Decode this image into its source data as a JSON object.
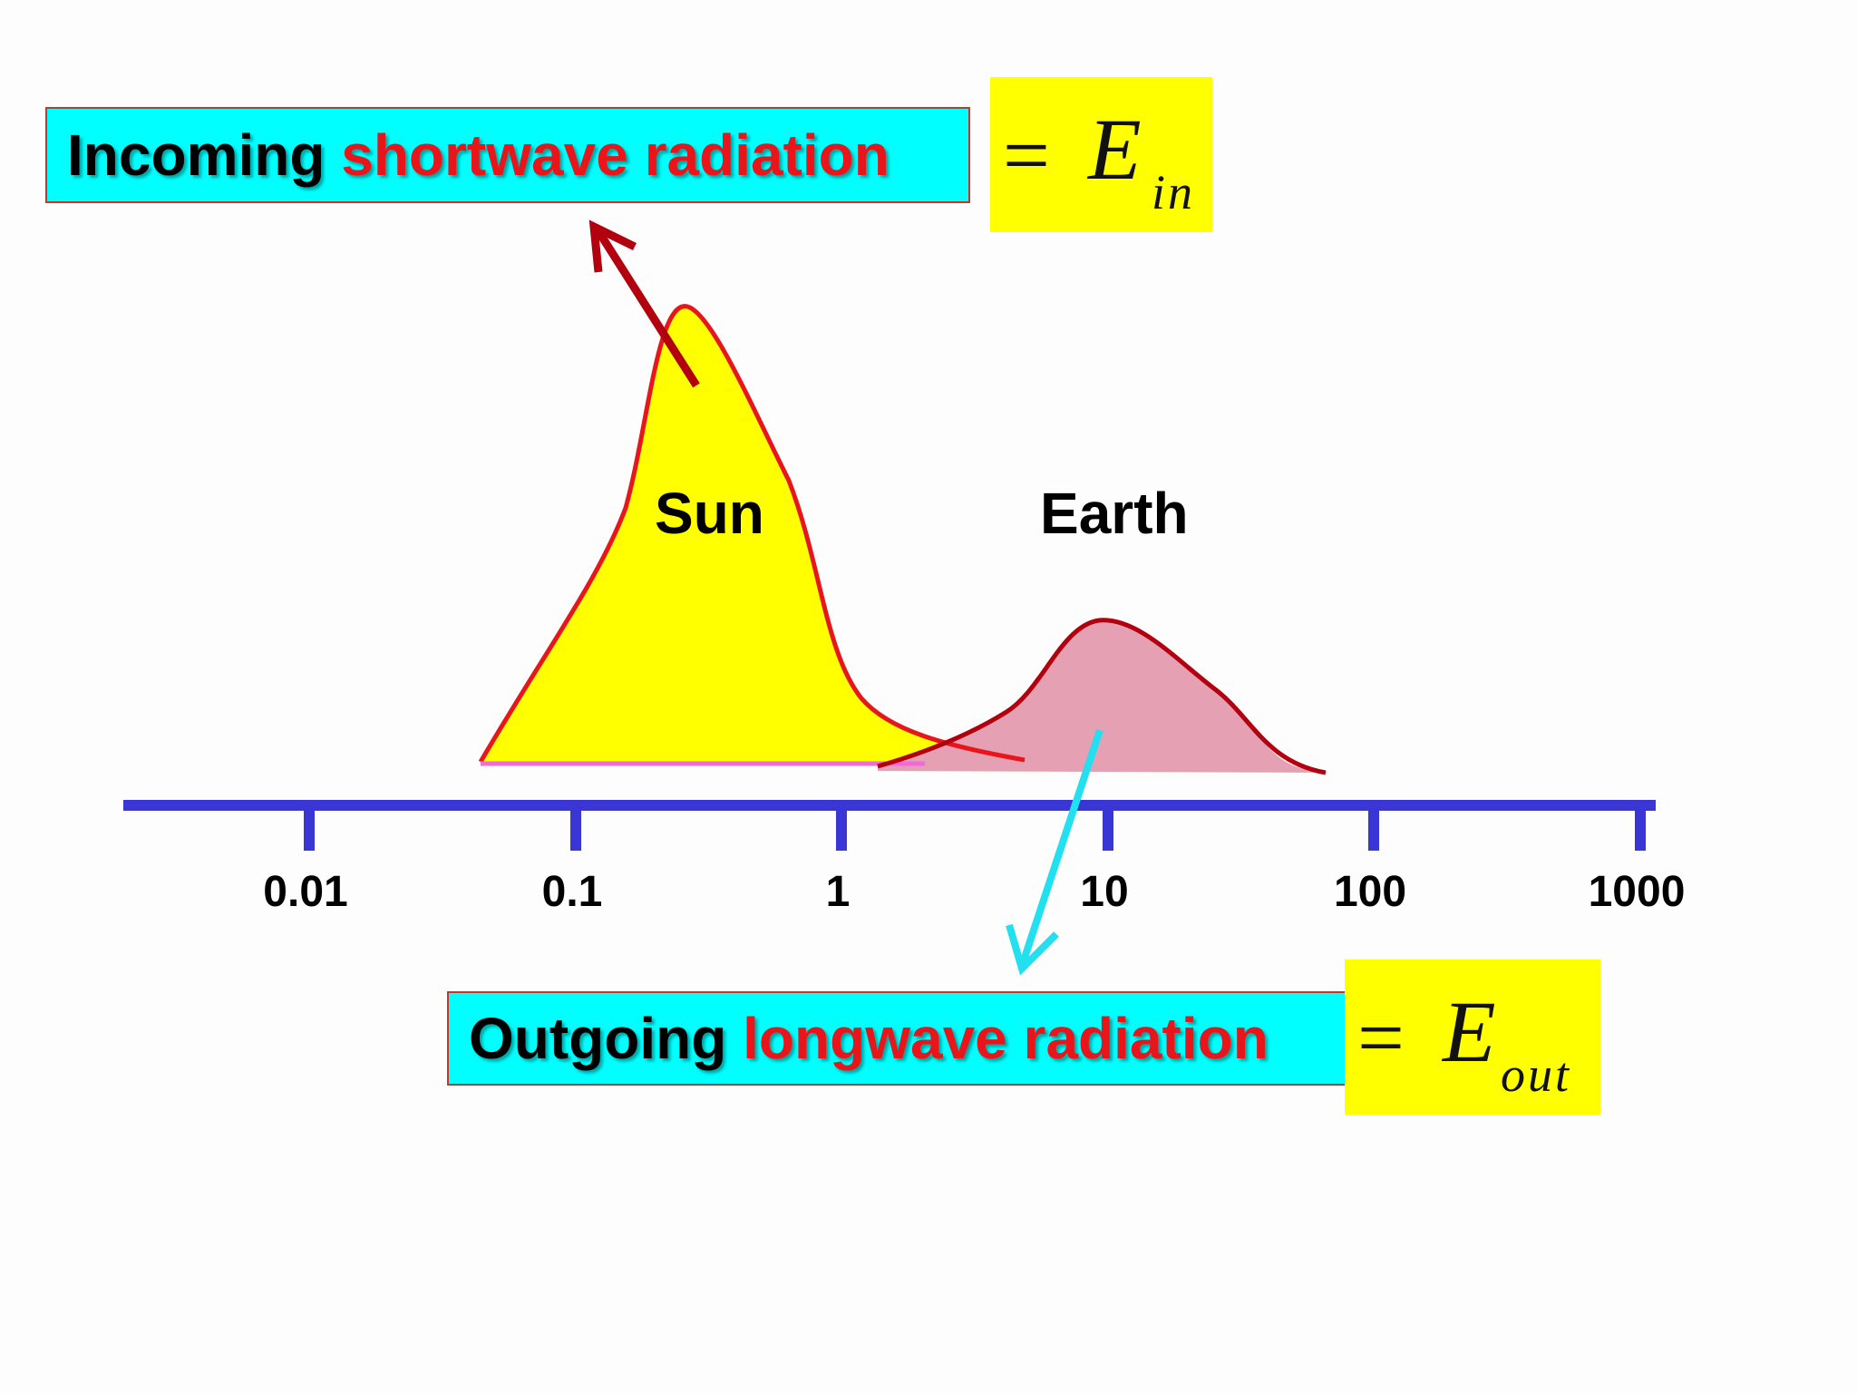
{
  "incoming": {
    "prefix": "Incoming ",
    "highlight": "shortwave radiation",
    "equation": {
      "sign": "=",
      "symbol": "E",
      "subscript": "in"
    }
  },
  "outgoing": {
    "prefix": "Outgoing ",
    "highlight": "longwave radiation",
    "equation": {
      "sign": "=",
      "symbol": "E",
      "subscript": "out"
    }
  },
  "curves": {
    "sun": "Sun",
    "earth": "Earth"
  },
  "axis": {
    "scale": "log",
    "ticks": [
      "0.01",
      "0.1",
      "1",
      "10",
      "100",
      "1000"
    ]
  },
  "colors": {
    "label_box_bg": "#00ffff",
    "label_box_border": "#c0392b",
    "highlight_text": "#e8161b",
    "equation_bg": "#ffff00",
    "sun_fill": "#ffff00",
    "sun_stroke": "#e8161b",
    "earth_fill": "#e6a0b4",
    "earth_stroke": "#b3000f",
    "axis": "#3a36d6",
    "incoming_arrow": "#b3000f",
    "outgoing_arrow": "#22e0f0"
  }
}
